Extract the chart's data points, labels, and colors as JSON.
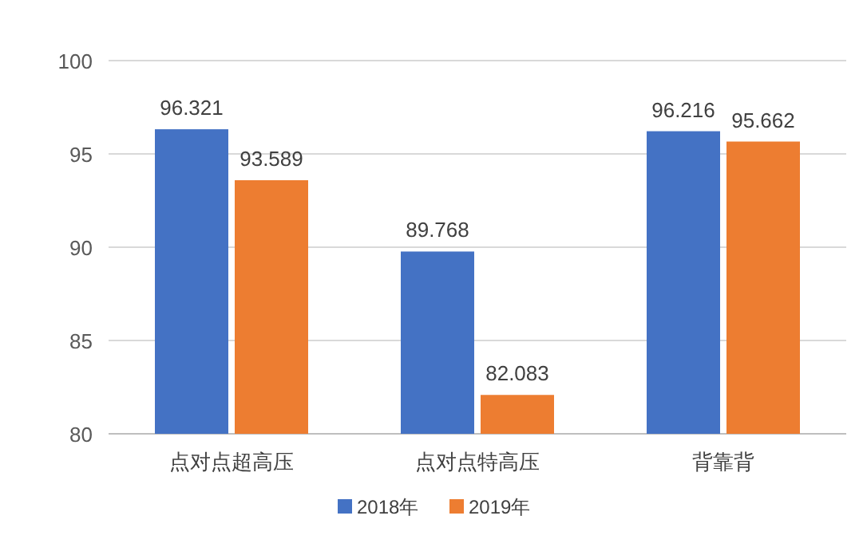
{
  "chart_data": {
    "type": "bar",
    "categories": [
      "点对点超高压",
      "点对点特高压",
      "背靠背"
    ],
    "series": [
      {
        "name": "2018年",
        "color": "#4472c4",
        "values": [
          96.321,
          89.768,
          96.216
        ]
      },
      {
        "name": "2019年",
        "color": "#ed7d31",
        "values": [
          93.589,
          82.083,
          95.662
        ]
      }
    ],
    "ylim": [
      80,
      100
    ],
    "yticks": [
      80,
      85,
      90,
      95,
      100
    ],
    "grid": "y",
    "legend": "bottom",
    "data_labels": true
  }
}
